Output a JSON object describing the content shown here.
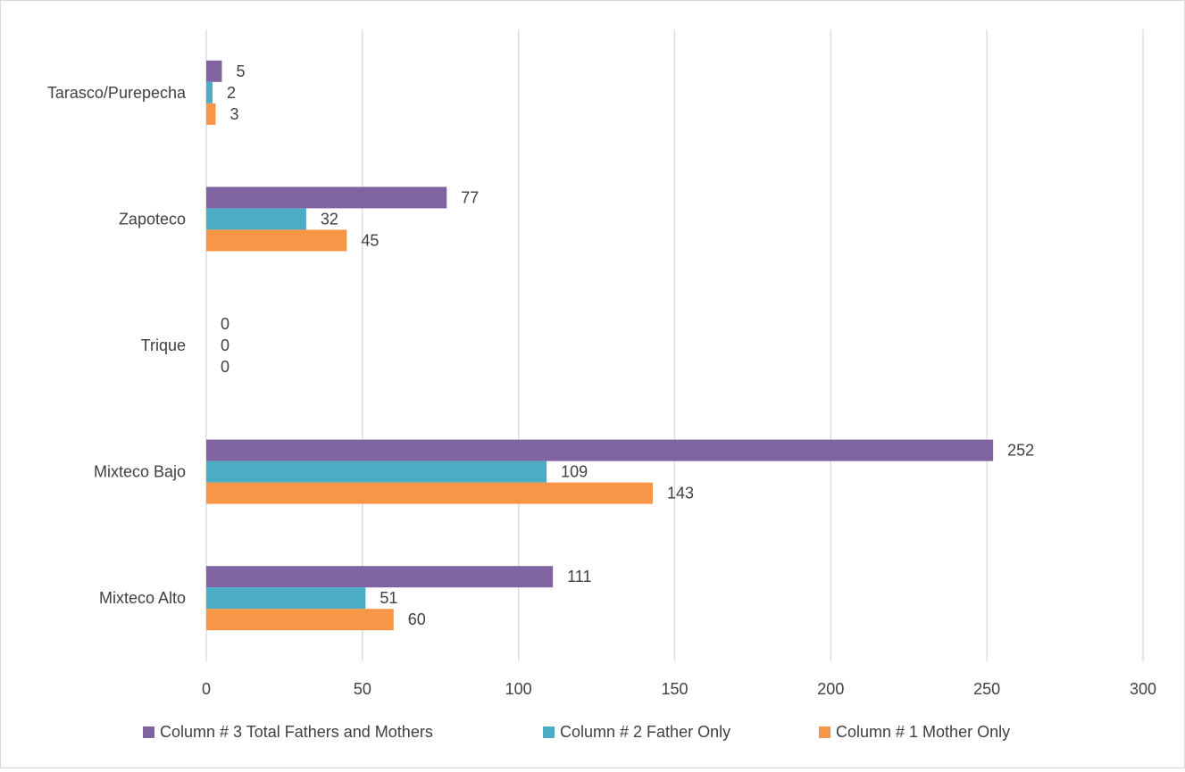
{
  "chart_data": {
    "type": "bar",
    "orientation": "horizontal",
    "categories": [
      "Mixteco Alto",
      "Mixteco Bajo",
      "Trique",
      "Zapoteco",
      "Tarasco/Purepecha"
    ],
    "series": [
      {
        "name": "Column # 3 Total Fathers and Mothers",
        "color": "#8064a2",
        "values": [
          111,
          252,
          0,
          77,
          5
        ]
      },
      {
        "name": "Column # 2 Father Only",
        "color": "#4bacc6",
        "values": [
          51,
          109,
          0,
          32,
          2
        ]
      },
      {
        "name": "Column # 1 Mother Only",
        "color": "#f79646",
        "values": [
          60,
          143,
          0,
          45,
          3
        ]
      }
    ],
    "xlim": [
      0,
      300
    ],
    "xticks": [
      0,
      50,
      100,
      150,
      200,
      250,
      300
    ],
    "grid": true,
    "data_labels": true,
    "legend_position": "bottom"
  }
}
